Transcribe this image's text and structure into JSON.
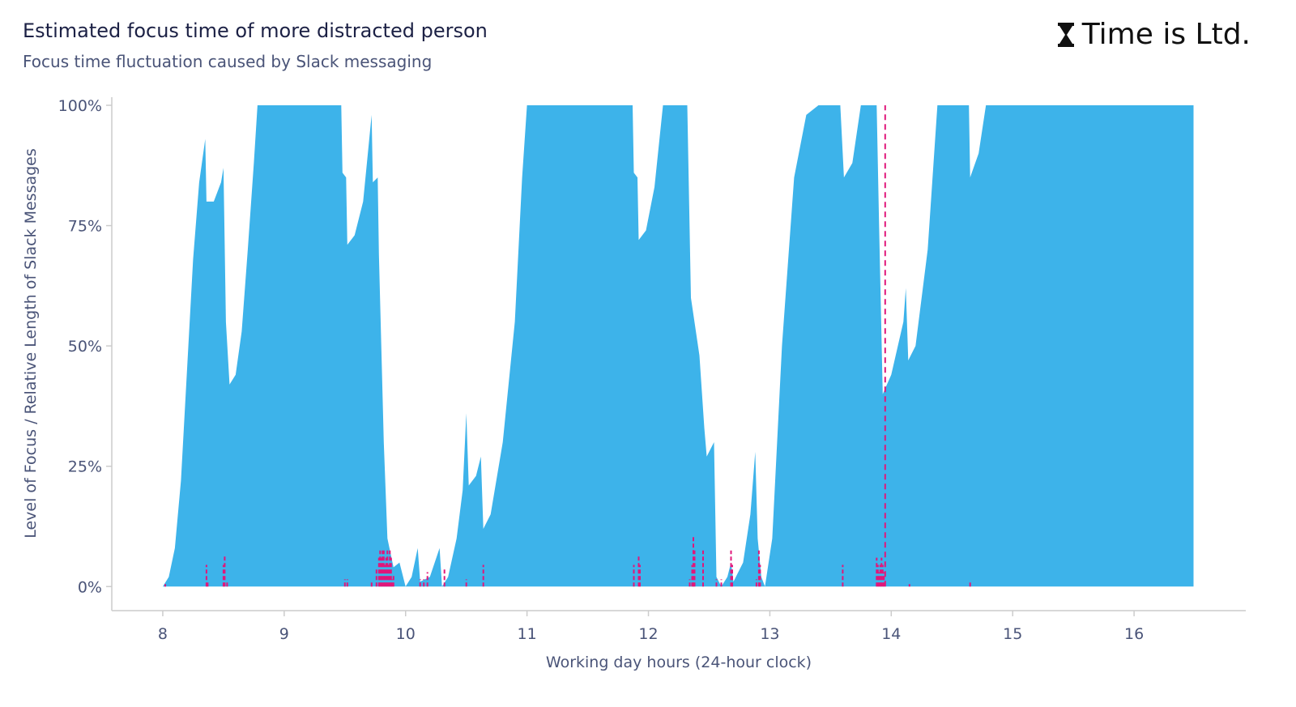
{
  "title": "Estimated focus time of more distracted person",
  "subtitle": "Focus time fluctuation caused by Slack messaging",
  "logo": {
    "text": "Time is Ltd.",
    "icon": "hourglass-icon"
  },
  "colors": {
    "area": "#3db3ea",
    "messages": "#e0177a",
    "axis": "#cccccc",
    "text": "#4a5478"
  },
  "chart_data": {
    "type": "area",
    "xlabel": "Working day hours (24-hour clock)",
    "ylabel": "Level of Focus / Relative Length of Slack Messages",
    "xlim": [
      7.58,
      16.92
    ],
    "ylim": [
      -0.05,
      1.0
    ],
    "xticks": [
      8,
      9,
      10,
      11,
      12,
      13,
      14,
      15,
      16
    ],
    "yticks": [
      0,
      0.25,
      0.5,
      0.75,
      1.0
    ],
    "ytick_labels": [
      "0%",
      "25%",
      "50%",
      "75%",
      "100%"
    ],
    "focus_series": [
      [
        8.0,
        0
      ],
      [
        8.05,
        0.02
      ],
      [
        8.1,
        0.08
      ],
      [
        8.15,
        0.22
      ],
      [
        8.2,
        0.45
      ],
      [
        8.25,
        0.68
      ],
      [
        8.3,
        0.84
      ],
      [
        8.35,
        0.93
      ],
      [
        8.36,
        0.8
      ],
      [
        8.42,
        0.8
      ],
      [
        8.48,
        0.84
      ],
      [
        8.5,
        0.87
      ],
      [
        8.52,
        0.55
      ],
      [
        8.55,
        0.42
      ],
      [
        8.6,
        0.44
      ],
      [
        8.65,
        0.53
      ],
      [
        8.7,
        0.7
      ],
      [
        8.75,
        0.88
      ],
      [
        8.78,
        1.0
      ],
      [
        9.47,
        1.0
      ],
      [
        9.48,
        0.86
      ],
      [
        9.51,
        0.85
      ],
      [
        9.52,
        0.71
      ],
      [
        9.58,
        0.73
      ],
      [
        9.65,
        0.8
      ],
      [
        9.72,
        0.98
      ],
      [
        9.73,
        0.84
      ],
      [
        9.77,
        0.85
      ],
      [
        9.78,
        0.69
      ],
      [
        9.82,
        0.3
      ],
      [
        9.85,
        0.1
      ],
      [
        9.9,
        0.04
      ],
      [
        9.95,
        0.05
      ],
      [
        10.0,
        0.0
      ],
      [
        10.05,
        0.02
      ],
      [
        10.1,
        0.08
      ],
      [
        10.12,
        0.01
      ],
      [
        10.2,
        0.02
      ],
      [
        10.28,
        0.08
      ],
      [
        10.3,
        0.0
      ],
      [
        10.35,
        0.02
      ],
      [
        10.42,
        0.1
      ],
      [
        10.47,
        0.2
      ],
      [
        10.5,
        0.36
      ],
      [
        10.52,
        0.21
      ],
      [
        10.58,
        0.23
      ],
      [
        10.62,
        0.27
      ],
      [
        10.64,
        0.12
      ],
      [
        10.7,
        0.15
      ],
      [
        10.8,
        0.3
      ],
      [
        10.9,
        0.55
      ],
      [
        10.96,
        0.85
      ],
      [
        11.0,
        1.0
      ],
      [
        11.87,
        1.0
      ],
      [
        11.88,
        0.86
      ],
      [
        11.91,
        0.85
      ],
      [
        11.92,
        0.72
      ],
      [
        11.98,
        0.74
      ],
      [
        12.05,
        0.83
      ],
      [
        12.12,
        1.0
      ],
      [
        12.32,
        1.0
      ],
      [
        12.35,
        0.6
      ],
      [
        12.42,
        0.48
      ],
      [
        12.46,
        0.33
      ],
      [
        12.48,
        0.27
      ],
      [
        12.52,
        0.29
      ],
      [
        12.54,
        0.3
      ],
      [
        12.56,
        0.02
      ],
      [
        12.6,
        0.0
      ],
      [
        12.65,
        0.02
      ],
      [
        12.68,
        0.05
      ],
      [
        12.7,
        0.01
      ],
      [
        12.78,
        0.05
      ],
      [
        12.84,
        0.15
      ],
      [
        12.88,
        0.28
      ],
      [
        12.9,
        0.1
      ],
      [
        12.93,
        0.02
      ],
      [
        12.96,
        0.0
      ],
      [
        13.02,
        0.1
      ],
      [
        13.1,
        0.5
      ],
      [
        13.2,
        0.85
      ],
      [
        13.3,
        0.98
      ],
      [
        13.4,
        1.0
      ],
      [
        13.58,
        1.0
      ],
      [
        13.61,
        0.85
      ],
      [
        13.68,
        0.88
      ],
      [
        13.75,
        1.0
      ],
      [
        13.88,
        1.0
      ],
      [
        13.9,
        0.75
      ],
      [
        13.93,
        0.4
      ],
      [
        14.0,
        0.44
      ],
      [
        14.1,
        0.55
      ],
      [
        14.12,
        0.62
      ],
      [
        14.14,
        0.47
      ],
      [
        14.2,
        0.5
      ],
      [
        14.3,
        0.7
      ],
      [
        14.38,
        1.0
      ],
      [
        14.64,
        1.0
      ],
      [
        14.65,
        0.85
      ],
      [
        14.72,
        0.9
      ],
      [
        14.78,
        1.0
      ],
      [
        16.49,
        1.0
      ],
      [
        16.49,
        0
      ]
    ],
    "message_series": [
      [
        8.02,
        0.005
      ],
      [
        8.36,
        0.045
      ],
      [
        8.37,
        0.01
      ],
      [
        8.5,
        0.045
      ],
      [
        8.51,
        0.065
      ],
      [
        8.53,
        0.01
      ],
      [
        9.5,
        0.015
      ],
      [
        9.52,
        0.015
      ],
      [
        9.72,
        0.01
      ],
      [
        9.76,
        0.04
      ],
      [
        9.78,
        0.06
      ],
      [
        9.79,
        0.075
      ],
      [
        9.8,
        0.06
      ],
      [
        9.81,
        0.075
      ],
      [
        9.82,
        0.075
      ],
      [
        9.83,
        0.045
      ],
      [
        9.84,
        0.06
      ],
      [
        9.85,
        0.075
      ],
      [
        9.86,
        0.045
      ],
      [
        9.87,
        0.075
      ],
      [
        9.88,
        0.06
      ],
      [
        9.89,
        0.015
      ],
      [
        9.9,
        0.025
      ],
      [
        10.12,
        0.015
      ],
      [
        10.15,
        0.015
      ],
      [
        10.18,
        0.03
      ],
      [
        10.32,
        0.04
      ],
      [
        10.5,
        0.015
      ],
      [
        10.64,
        0.045
      ],
      [
        11.88,
        0.045
      ],
      [
        11.92,
        0.065
      ],
      [
        11.93,
        0.045
      ],
      [
        12.34,
        0.015
      ],
      [
        12.36,
        0.045
      ],
      [
        12.37,
        0.105
      ],
      [
        12.38,
        0.075
      ],
      [
        12.45,
        0.075
      ],
      [
        12.56,
        0.015
      ],
      [
        12.6,
        0.015
      ],
      [
        12.68,
        0.075
      ],
      [
        12.69,
        0.045
      ],
      [
        12.89,
        0.015
      ],
      [
        12.91,
        0.075
      ],
      [
        12.92,
        0.045
      ],
      [
        13.6,
        0.045
      ],
      [
        13.88,
        0.06
      ],
      [
        13.89,
        0.045
      ],
      [
        13.9,
        0.03
      ],
      [
        13.91,
        0.045
      ],
      [
        13.92,
        0.06
      ],
      [
        13.93,
        0.045
      ],
      [
        13.94,
        0.03
      ],
      [
        14.15,
        0.005
      ],
      [
        14.65,
        0.01
      ]
    ],
    "highlight_line_x": 13.95
  }
}
